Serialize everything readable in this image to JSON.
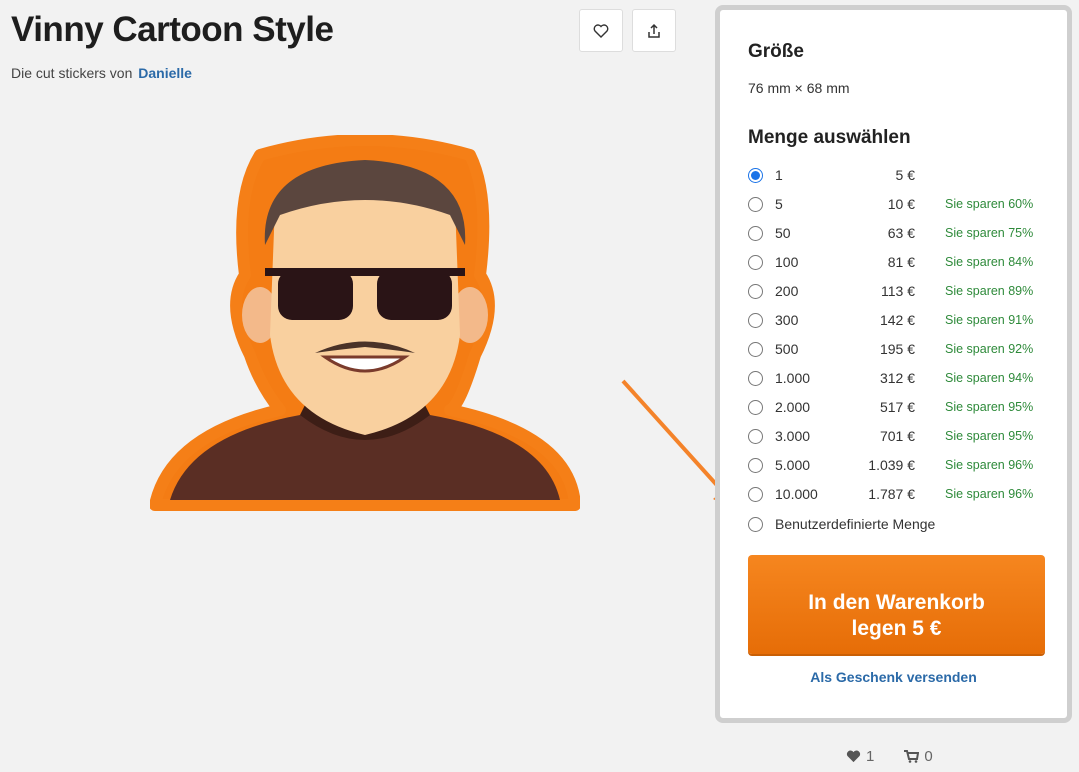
{
  "product": {
    "title": "Vinny Cartoon Style",
    "byline_prefix": "Die cut stickers von",
    "author": "Danielle"
  },
  "actions": {
    "favorite_icon": "heart-outline-icon",
    "share_icon": "share-upload-icon"
  },
  "panel": {
    "size_heading": "Größe",
    "size_value": "76 mm × 68 mm",
    "quantity_heading": "Menge auswählen",
    "options": [
      {
        "qty": "1",
        "price": "5 €",
        "saving": "",
        "selected": true
      },
      {
        "qty": "5",
        "price": "10 €",
        "saving": "Sie sparen 60%"
      },
      {
        "qty": "50",
        "price": "63 €",
        "saving": "Sie sparen 75%"
      },
      {
        "qty": "100",
        "price": "81 €",
        "saving": "Sie sparen 84%"
      },
      {
        "qty": "200",
        "price": "113 €",
        "saving": "Sie sparen 89%"
      },
      {
        "qty": "300",
        "price": "142 €",
        "saving": "Sie sparen 91%"
      },
      {
        "qty": "500",
        "price": "195 €",
        "saving": "Sie sparen 92%"
      },
      {
        "qty": "1.000",
        "price": "312 €",
        "saving": "Sie sparen 94%"
      },
      {
        "qty": "2.000",
        "price": "517 €",
        "saving": "Sie sparen 95%"
      },
      {
        "qty": "3.000",
        "price": "701 €",
        "saving": "Sie sparen 95%"
      },
      {
        "qty": "5.000",
        "price": "1.039 €",
        "saving": "Sie sparen 96%"
      },
      {
        "qty": "10.000",
        "price": "1.787 €",
        "saving": "Sie sparen 96%"
      }
    ],
    "custom_label": "Benutzerdefinierte Menge",
    "cart_line1": "In den Warenkorb",
    "cart_line2": "legen 5 €",
    "gift_link": "Als Geschenk versenden"
  },
  "stats": {
    "likes": "1",
    "cart_count": "0"
  },
  "colors": {
    "accent": "#f47c14",
    "link": "#2b6aa8",
    "saving": "#2e8a3a"
  }
}
